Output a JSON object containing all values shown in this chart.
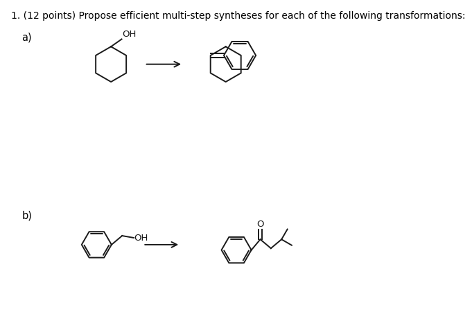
{
  "title_text": "1. (12 points) Propose efficient multi-step syntheses for each of the following transformations:",
  "label_a": "a)",
  "label_b": "b)",
  "bg_color": "#ffffff",
  "text_color": "#000000",
  "line_color": "#1a1a1a",
  "line_width": 1.4,
  "font_size_title": 10.0,
  "font_size_label": 10.5,
  "font_size_atom": 9.5
}
